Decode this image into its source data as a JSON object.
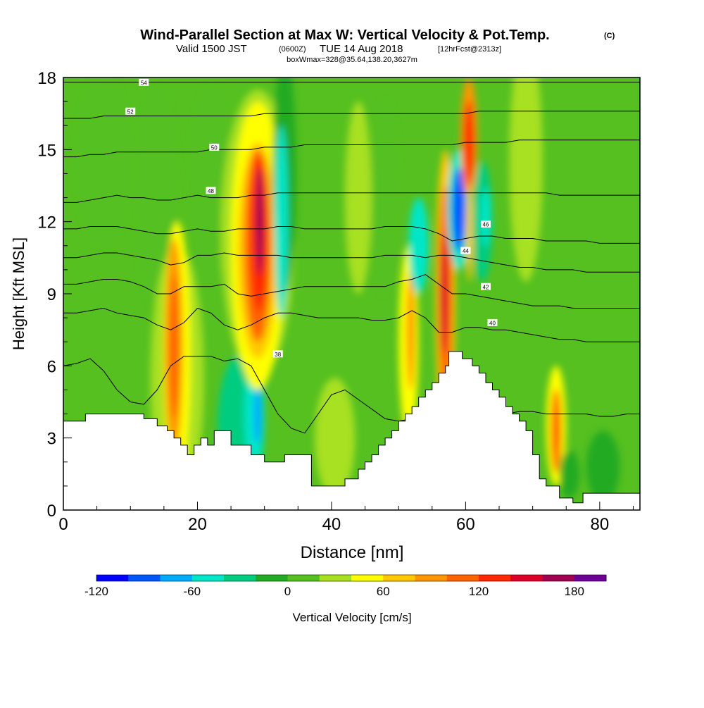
{
  "chart_data": {
    "type": "heatmap",
    "title": "Wind-Parallel Section at Max W: Vertical Velocity & Pot.Temp.",
    "title_suffix": "(C)",
    "subtitle": {
      "valid": "Valid 1500 JST",
      "utc": "(0600Z)",
      "date": "TUE 14 Aug 2018",
      "forecast": "[12hrFcst@2313z]"
    },
    "box_info": "boxWmax=328@35.64,138.20,3627m",
    "xlabel": "Distance [nm]",
    "ylabel": "Height [Kft MSL]",
    "xlim": [
      0,
      86
    ],
    "ylim": [
      0,
      18
    ],
    "x_ticks": [
      "0",
      "20",
      "40",
      "60",
      "80"
    ],
    "y_ticks": [
      "0",
      "3",
      "6",
      "9",
      "12",
      "15",
      "18"
    ],
    "colorbar": {
      "label": "Vertical Velocity [cm/s]",
      "min": -120,
      "step": 20,
      "tick_labels": [
        "-120",
        "-60",
        "0",
        "60",
        "120",
        "180"
      ],
      "colors": [
        "#0000ff",
        "#0055ff",
        "#00aaff",
        "#00e6c8",
        "#00cc80",
        "#22aa22",
        "#55c020",
        "#a8e020",
        "#ffff00",
        "#ffc800",
        "#ff9600",
        "#ff6400",
        "#ff2800",
        "#dc0028",
        "#a00050",
        "#6e0096"
      ]
    },
    "background_value": 5,
    "terrain": {
      "x": [
        0,
        3.3,
        3.3,
        12,
        12,
        14,
        14,
        15.5,
        15.5,
        16.5,
        16.5,
        17.5,
        17.5,
        18.5,
        18.5,
        19.5,
        19.5,
        20.5,
        20.5,
        21.5,
        21.5,
        22.5,
        22.5,
        25,
        25,
        28,
        28,
        30,
        30,
        33,
        33,
        37,
        37,
        42,
        42,
        44,
        44,
        45,
        45,
        46,
        46,
        47,
        47,
        48,
        48,
        49,
        49,
        50,
        50,
        51,
        51,
        52,
        52,
        53,
        53,
        54,
        54,
        55,
        55,
        56,
        56,
        57,
        57,
        57.5,
        57.5,
        59.5,
        59.5,
        61,
        61,
        62,
        62,
        63,
        63,
        64,
        64,
        65,
        65,
        66,
        66,
        67,
        67,
        68,
        68,
        69,
        69,
        70,
        70,
        71,
        71,
        72,
        72,
        74,
        74,
        76,
        76,
        77.5,
        77.5,
        86
      ],
      "y": [
        3.7,
        3.7,
        4.0,
        4.0,
        3.8,
        3.8,
        3.5,
        3.5,
        3.3,
        3.3,
        3.0,
        3.0,
        2.7,
        2.7,
        2.3,
        2.3,
        2.7,
        2.7,
        3.0,
        3.0,
        2.7,
        2.7,
        3.3,
        3.3,
        2.7,
        2.7,
        2.3,
        2.3,
        2.0,
        2.0,
        2.3,
        2.3,
        1.0,
        1.0,
        1.3,
        1.3,
        1.7,
        1.7,
        2.0,
        2.0,
        2.3,
        2.3,
        2.7,
        2.7,
        3.0,
        3.0,
        3.3,
        3.3,
        3.7,
        3.7,
        4.0,
        4.0,
        4.3,
        4.3,
        4.7,
        4.7,
        5.0,
        5.0,
        5.3,
        5.3,
        5.7,
        5.7,
        6.0,
        6.0,
        6.6,
        6.6,
        6.3,
        6.3,
        6.0,
        6.0,
        5.7,
        5.7,
        5.3,
        5.3,
        5.0,
        5.0,
        4.7,
        4.7,
        4.3,
        4.3,
        4.0,
        4.0,
        3.7,
        3.7,
        3.3,
        3.3,
        2.3,
        2.3,
        1.3,
        1.3,
        1.0,
        1.0,
        0.5,
        0.5,
        0.3,
        0.3,
        0.7,
        0.7
      ]
    },
    "cells": [
      {
        "x": 6,
        "y": 14.5,
        "w": 8,
        "h": 7,
        "value": 15
      },
      {
        "x": 14,
        "y": 13,
        "w": 6,
        "h": 9,
        "value": 5
      },
      {
        "x": 17,
        "y": 5.5,
        "w": 8,
        "h": 11,
        "value": 25
      },
      {
        "x": 17,
        "y": 6.5,
        "w": 4,
        "h": 11,
        "value": 45
      },
      {
        "x": 16.5,
        "y": 6.8,
        "w": 2.6,
        "h": 9,
        "value": 90
      },
      {
        "x": 16.5,
        "y": 6.8,
        "w": 1.4,
        "h": 6,
        "value": 110
      },
      {
        "x": 22,
        "y": 13.5,
        "w": 6,
        "h": 8,
        "value": 15
      },
      {
        "x": 26.5,
        "y": 3.5,
        "w": 7,
        "h": 6,
        "value": -30
      },
      {
        "x": 28.5,
        "y": 4.0,
        "w": 3,
        "h": 4.5,
        "value": -60
      },
      {
        "x": 29,
        "y": 4.0,
        "w": 1.2,
        "h": 2.5,
        "value": -80
      },
      {
        "x": 29,
        "y": 11.5,
        "w": 11,
        "h": 12,
        "value": 25
      },
      {
        "x": 29,
        "y": 11.0,
        "w": 8,
        "h": 12,
        "value": 50
      },
      {
        "x": 29,
        "y": 10.8,
        "w": 6,
        "h": 9,
        "value": 75
      },
      {
        "x": 29,
        "y": 11.0,
        "w": 4,
        "h": 8,
        "value": 110
      },
      {
        "x": 29.2,
        "y": 11.5,
        "w": 2.5,
        "h": 6.5,
        "value": 135
      },
      {
        "x": 29.3,
        "y": 12.0,
        "w": 1.2,
        "h": 4.5,
        "value": 160
      },
      {
        "x": 33,
        "y": 14,
        "w": 3.5,
        "h": 10,
        "value": -20
      },
      {
        "x": 32.5,
        "y": 12,
        "w": 2,
        "h": 8,
        "value": -50
      },
      {
        "x": 40.5,
        "y": 3.0,
        "w": 6,
        "h": 5,
        "value": 25
      },
      {
        "x": 44,
        "y": 13,
        "w": 4,
        "h": 8,
        "value": 25
      },
      {
        "x": 48,
        "y": 13,
        "w": 4,
        "h": 8,
        "value": 5
      },
      {
        "x": 51.5,
        "y": 7,
        "w": 3,
        "h": 8,
        "value": 45
      },
      {
        "x": 51.8,
        "y": 7.5,
        "w": 1.2,
        "h": 5,
        "value": 90
      },
      {
        "x": 53,
        "y": 11,
        "w": 3,
        "h": 4,
        "value": -60
      },
      {
        "x": 57,
        "y": 9,
        "w": 3,
        "h": 12,
        "value": 75
      },
      {
        "x": 57,
        "y": 9.0,
        "w": 2,
        "h": 9,
        "value": 110
      },
      {
        "x": 56.8,
        "y": 9.0,
        "w": 1.2,
        "h": 5,
        "value": 140
      },
      {
        "x": 59,
        "y": 12.5,
        "w": 3.5,
        "h": 5,
        "value": -60
      },
      {
        "x": 59,
        "y": 12.5,
        "w": 2,
        "h": 3.5,
        "value": -100
      },
      {
        "x": 60.5,
        "y": 15.5,
        "w": 2.5,
        "h": 5,
        "value": 90
      },
      {
        "x": 60.5,
        "y": 15.3,
        "w": 1.5,
        "h": 3.5,
        "value": 130
      },
      {
        "x": 60.6,
        "y": 11.5,
        "w": 1,
        "h": 4,
        "value": 75
      },
      {
        "x": 62.5,
        "y": 12.0,
        "w": 3,
        "h": 5,
        "value": -40
      },
      {
        "x": 63,
        "y": 12.2,
        "w": 1.5,
        "h": 2.5,
        "value": -60
      },
      {
        "x": 69,
        "y": 14.5,
        "w": 5,
        "h": 10,
        "value": 25
      },
      {
        "x": 73.5,
        "y": 3.5,
        "w": 3,
        "h": 5,
        "value": 45
      },
      {
        "x": 73.5,
        "y": 3.3,
        "w": 1.5,
        "h": 3.5,
        "value": 110
      },
      {
        "x": 75.5,
        "y": 1.5,
        "w": 3,
        "h": 2,
        "value": -20
      },
      {
        "x": 80.5,
        "y": 1.8,
        "w": 5,
        "h": 3,
        "value": -10
      }
    ],
    "isentropes": [
      {
        "label": "38",
        "y": [
          6.0,
          6.1,
          6.3,
          5.8,
          5.0,
          4.5,
          4.4,
          5.0,
          6.0,
          6.4,
          6.4,
          6.4,
          6.2,
          6.3,
          6.0,
          5.0,
          4.0,
          3.4,
          3.2,
          4.0,
          4.8,
          5.0,
          4.6,
          4.2,
          3.8,
          3.7,
          3.8,
          4.0,
          4.0,
          4.0,
          4.0,
          4.0,
          4.0,
          4.0,
          4.1,
          4.1,
          4.0,
          4.0,
          4.0,
          4.0,
          3.9,
          3.9,
          4.0,
          4.0
        ],
        "lx": 32,
        "ly": 6.5
      },
      {
        "label": "40",
        "y": [
          8.2,
          8.2,
          8.3,
          8.4,
          8.2,
          8.1,
          8.0,
          7.7,
          7.5,
          7.8,
          8.4,
          8.2,
          7.7,
          7.5,
          7.7,
          8.0,
          8.2,
          8.2,
          8.1,
          8.0,
          8.0,
          8.0,
          8.0,
          7.9,
          7.9,
          8.0,
          8.3,
          8.0,
          7.4,
          7.4,
          7.6,
          7.6,
          7.5,
          7.5,
          7.4,
          7.3,
          7.2,
          7.1,
          7.1,
          7.0,
          7.0,
          7.0,
          7.0,
          7.0
        ],
        "lx": 64,
        "ly": 7.8
      },
      {
        "label": "42",
        "y": [
          9.4,
          9.4,
          9.5,
          9.6,
          9.6,
          9.5,
          9.3,
          9.0,
          9.0,
          9.3,
          9.3,
          9.3,
          9.4,
          9.0,
          8.9,
          9.0,
          9.1,
          9.2,
          9.3,
          9.3,
          9.3,
          9.3,
          9.3,
          9.3,
          9.3,
          9.5,
          9.6,
          9.8,
          9.4,
          9.0,
          9.0,
          8.9,
          8.8,
          8.7,
          8.6,
          8.5,
          8.5,
          8.5,
          8.4,
          8.4,
          8.4,
          8.4,
          8.4,
          8.4
        ],
        "lx": 63,
        "ly": 9.3
      },
      {
        "label": "44",
        "y": [
          10.5,
          10.5,
          10.6,
          10.7,
          10.7,
          10.6,
          10.5,
          10.4,
          10.2,
          10.3,
          10.6,
          10.6,
          10.7,
          10.6,
          10.6,
          10.6,
          10.6,
          10.5,
          10.5,
          10.5,
          10.5,
          10.5,
          10.5,
          10.5,
          10.6,
          10.6,
          10.6,
          10.5,
          10.6,
          10.6,
          10.5,
          10.4,
          10.3,
          10.2,
          10.1,
          10.1,
          10.0,
          10.0,
          10.0,
          9.9,
          9.9,
          9.9,
          9.9,
          9.9
        ],
        "lx": 60,
        "ly": 10.8
      },
      {
        "label": "46",
        "y": [
          11.7,
          11.7,
          11.8,
          11.8,
          11.8,
          11.7,
          11.6,
          11.5,
          11.5,
          11.6,
          11.7,
          11.6,
          11.6,
          11.7,
          11.7,
          11.7,
          11.8,
          11.8,
          11.7,
          11.7,
          11.7,
          11.7,
          11.7,
          11.7,
          11.8,
          11.8,
          11.8,
          11.7,
          11.5,
          11.2,
          11.3,
          11.4,
          11.4,
          11.3,
          11.3,
          11.3,
          11.2,
          11.2,
          11.2,
          11.2,
          11.1,
          11.1,
          11.1,
          11.1
        ],
        "lx": 63,
        "ly": 11.9
      },
      {
        "label": "48",
        "y": [
          12.8,
          12.8,
          12.9,
          13.0,
          13.1,
          13.0,
          13.0,
          12.9,
          12.9,
          13.0,
          13.1,
          13.0,
          13.0,
          13.0,
          13.1,
          13.1,
          13.2,
          13.2,
          13.2,
          13.2,
          13.2,
          13.2,
          13.2,
          13.2,
          13.2,
          13.2,
          13.2,
          13.2,
          13.2,
          13.2,
          13.2,
          13.2,
          13.2,
          13.2,
          13.2,
          13.2,
          13.2,
          13.1,
          13.1,
          13.1,
          13.1,
          13.1,
          13.1,
          13.1
        ],
        "lx": 22,
        "ly": 13.3
      },
      {
        "label": "50",
        "y": [
          14.7,
          14.7,
          14.8,
          14.8,
          14.9,
          14.9,
          14.9,
          14.9,
          14.9,
          14.9,
          14.9,
          15.0,
          15.0,
          15.0,
          15.0,
          15.1,
          15.1,
          15.1,
          15.2,
          15.2,
          15.2,
          15.2,
          15.2,
          15.2,
          15.2,
          15.2,
          15.2,
          15.2,
          15.2,
          15.2,
          15.3,
          15.3,
          15.3,
          15.3,
          15.4,
          15.4,
          15.4,
          15.4,
          15.4,
          15.4,
          15.4,
          15.4,
          15.4,
          15.4
        ],
        "lx": 22.5,
        "ly": 15.1
      },
      {
        "label": "52",
        "y": [
          16.3,
          16.3,
          16.3,
          16.4,
          16.4,
          16.4,
          16.4,
          16.4,
          16.4,
          16.4,
          16.4,
          16.4,
          16.4,
          16.4,
          16.4,
          16.5,
          16.5,
          16.5,
          16.5,
          16.5,
          16.5,
          16.5,
          16.5,
          16.5,
          16.5,
          16.5,
          16.5,
          16.5,
          16.5,
          16.5,
          16.5,
          16.6,
          16.6,
          16.6,
          16.6,
          16.6,
          16.6,
          16.6,
          16.6,
          16.6,
          16.6,
          16.6,
          16.6,
          16.6
        ],
        "lx": 10,
        "ly": 16.6
      },
      {
        "label": "54",
        "y": [
          17.8,
          17.8,
          17.8,
          17.8,
          17.8,
          17.8,
          17.8,
          17.8,
          17.8,
          17.8,
          17.8,
          17.8,
          17.8,
          17.8,
          17.8,
          17.8,
          17.8,
          17.8,
          17.8,
          17.8,
          17.8,
          17.8,
          17.8,
          17.8,
          17.8,
          17.8,
          17.8,
          17.8,
          17.8,
          17.8,
          17.8,
          17.8,
          17.8,
          17.8,
          17.8,
          17.8,
          17.8,
          17.8,
          17.8,
          17.8,
          17.8,
          17.8,
          17.8,
          17.8
        ],
        "lx": 12,
        "ly": 17.8
      }
    ]
  }
}
